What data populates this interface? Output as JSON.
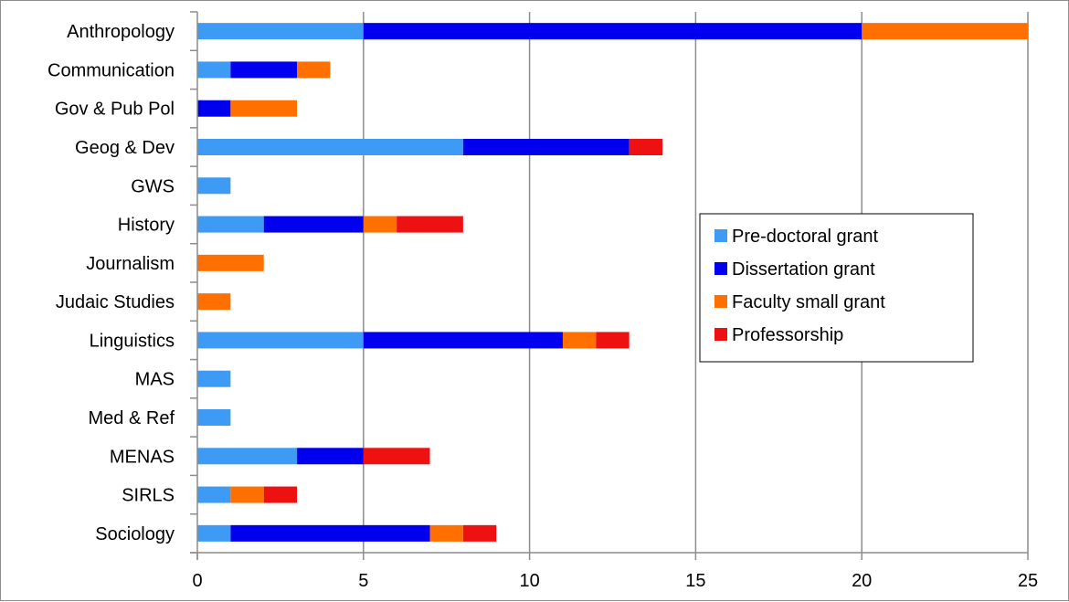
{
  "chart_data": {
    "type": "bar",
    "orientation": "horizontal",
    "stacked": true,
    "categories": [
      "Anthropology",
      "Communication",
      "Gov & Pub Pol",
      "Geog & Dev",
      "GWS",
      "History",
      "Journalism",
      "Judaic Studies",
      "Linguistics",
      "MAS",
      "Med & Ref",
      "MENAS",
      "SIRLS",
      "Sociology"
    ],
    "series": [
      {
        "name": "Pre-doctoral grant",
        "color": "#3d9bf5",
        "values": [
          5,
          1,
          0,
          8,
          1,
          2,
          0,
          0,
          5,
          1,
          1,
          3,
          1,
          1
        ]
      },
      {
        "name": "Dissertation grant",
        "color": "#0000ee",
        "values": [
          15,
          2,
          1,
          5,
          0,
          3,
          0,
          0,
          6,
          0,
          0,
          2,
          0,
          6
        ]
      },
      {
        "name": "Faculty small grant",
        "color": "#ff7000",
        "values": [
          5,
          1,
          2,
          0,
          0,
          1,
          2,
          1,
          1,
          0,
          0,
          0,
          1,
          1
        ]
      },
      {
        "name": "Professorship",
        "color": "#ee1111",
        "values": [
          0,
          0,
          0,
          1,
          0,
          2,
          0,
          0,
          1,
          0,
          0,
          2,
          1,
          1
        ]
      }
    ],
    "xlim": [
      0,
      25
    ],
    "xticks": [
      0,
      5,
      10,
      15,
      20,
      25
    ],
    "gridlines": "vertical",
    "legend_position": "right",
    "title": "",
    "xlabel": "",
    "ylabel": ""
  }
}
